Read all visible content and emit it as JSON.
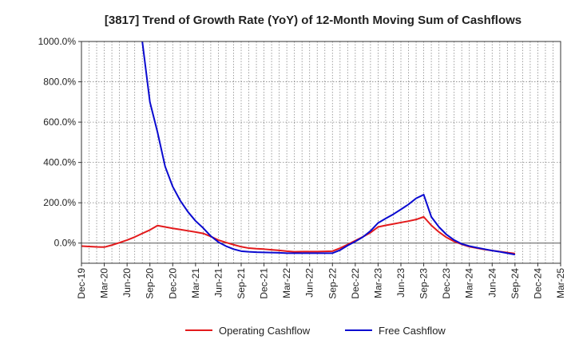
{
  "chart_data": {
    "type": "line",
    "title": "[3817]  Trend of Growth Rate (YoY) of 12-Month Moving Sum of Cashflows",
    "xlabel": "",
    "ylabel": "",
    "ylim": [
      -100,
      1000
    ],
    "yticks": [
      0,
      200,
      400,
      600,
      800,
      1000
    ],
    "ytick_labels": [
      "0.0%",
      "200.0%",
      "400.0%",
      "600.0%",
      "800.0%",
      "1000.0%"
    ],
    "x_tick_labels": [
      "Dec-19",
      "Mar-20",
      "Jun-20",
      "Sep-20",
      "Dec-20",
      "Mar-21",
      "Jun-21",
      "Sep-21",
      "Dec-21",
      "Mar-22",
      "Jun-22",
      "Sep-22",
      "Dec-22",
      "Mar-23",
      "Jun-23",
      "Sep-23",
      "Dec-23",
      "Mar-24",
      "Jun-24",
      "Sep-24",
      "Dec-24",
      "Mar-25"
    ],
    "x": [
      "Dec-19",
      "Jan-20",
      "Feb-20",
      "Mar-20",
      "Apr-20",
      "May-20",
      "Jun-20",
      "Jul-20",
      "Aug-20",
      "Sep-20",
      "Oct-20",
      "Nov-20",
      "Dec-20",
      "Jan-21",
      "Feb-21",
      "Mar-21",
      "Apr-21",
      "May-21",
      "Jun-21",
      "Jul-21",
      "Aug-21",
      "Sep-21",
      "Oct-21",
      "Nov-21",
      "Dec-21",
      "Jan-22",
      "Feb-22",
      "Mar-22",
      "Apr-22",
      "May-22",
      "Jun-22",
      "Jul-22",
      "Aug-22",
      "Sep-22",
      "Oct-22",
      "Nov-22",
      "Dec-22",
      "Jan-23",
      "Feb-23",
      "Mar-23",
      "Apr-23",
      "May-23",
      "Jun-23",
      "Jul-23",
      "Aug-23",
      "Sep-23",
      "Oct-23",
      "Nov-23",
      "Dec-23",
      "Jan-24",
      "Feb-24",
      "Mar-24",
      "Apr-24",
      "May-24",
      "Jun-24",
      "Jul-24",
      "Aug-24",
      "Sep-24",
      "Oct-24",
      "Nov-24",
      "Dec-24",
      "Jan-25",
      "Feb-25",
      "Mar-25"
    ],
    "grid": true,
    "legend_position": "bottom-center",
    "series": [
      {
        "name": "Operating Cashflow",
        "color": "#e31a1c",
        "values": [
          -15,
          -17,
          -19,
          -20,
          -10,
          2,
          15,
          30,
          48,
          65,
          87,
          80,
          73,
          67,
          61,
          55,
          48,
          33,
          15,
          3,
          -8,
          -18,
          -25,
          -28,
          -30,
          -33,
          -36,
          -40,
          -43,
          -42,
          -42,
          -42,
          -41,
          -40,
          -25,
          -7,
          12,
          31,
          52,
          80,
          88,
          95,
          102,
          109,
          117,
          130,
          88,
          55,
          28,
          8,
          -6,
          -18,
          -25,
          -32,
          -37,
          -42,
          -47,
          -52,
          null,
          null,
          null,
          null,
          null,
          null
        ]
      },
      {
        "name": "Free Cashflow",
        "color": "#0a0ad0",
        "values": [
          null,
          null,
          null,
          null,
          null,
          null,
          null,
          null,
          1000,
          700,
          550,
          380,
          280,
          210,
          155,
          110,
          75,
          35,
          5,
          -15,
          -30,
          -40,
          -43,
          -45,
          -46,
          -47,
          -48,
          -50,
          -50,
          -50,
          -50,
          -50,
          -50,
          -50,
          -35,
          -12,
          8,
          30,
          60,
          100,
          122,
          143,
          167,
          192,
          222,
          240,
          130,
          80,
          42,
          15,
          -4,
          -15,
          -23,
          -30,
          -37,
          -43,
          -50,
          -57,
          null,
          null,
          null,
          null,
          null,
          null
        ]
      }
    ]
  }
}
